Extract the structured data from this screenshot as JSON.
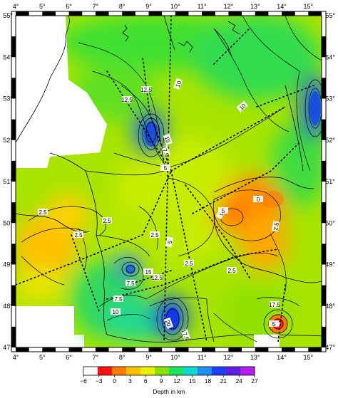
{
  "map": {
    "lon_ticks": [
      "4°",
      "5°",
      "6°",
      "7°",
      "8°",
      "9°",
      "10°",
      "11°",
      "12°",
      "13°",
      "14°",
      "15°"
    ],
    "lat_ticks": [
      "55°",
      "54°",
      "53°",
      "52°",
      "51°",
      "50°",
      "49°",
      "48°",
      "47°"
    ],
    "lon_range": [
      4,
      15.5
    ],
    "lat_range": [
      47,
      55
    ],
    "contour_labels": [
      "12.5",
      "12.5",
      "10",
      "10",
      "15",
      "17.5",
      "5",
      "2.5",
      "2.5",
      "2.5",
      "2.5",
      "0",
      "0",
      "5",
      "7.5",
      "7.5",
      "10",
      "12.5",
      "15",
      "20",
      "17.5",
      "17.5",
      "5",
      "2.5",
      "2.5",
      "5",
      "2.5"
    ]
  },
  "colorbar": {
    "tick_labels": [
      "−6",
      "−3",
      "0",
      "3",
      "6",
      "9",
      "12",
      "15",
      "18",
      "21",
      "24",
      "27"
    ],
    "title": "Depth in km",
    "colors": [
      "#ffffff",
      "#ff1010",
      "#ff7a00",
      "#ffc000",
      "#e6f000",
      "#8ce000",
      "#20e060",
      "#10d8d0",
      "#2090f0",
      "#2040ff",
      "#6020e0",
      "#b020e8"
    ]
  }
}
